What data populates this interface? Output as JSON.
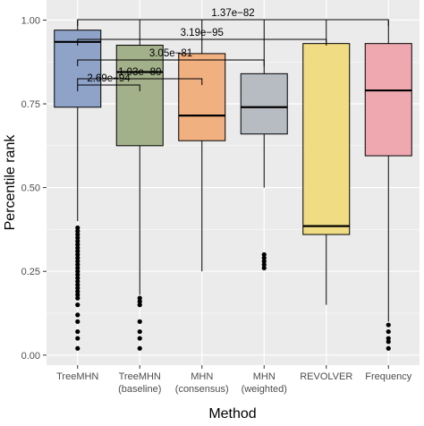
{
  "chart_data": {
    "type": "box",
    "title": "",
    "xlabel": "Method",
    "ylabel": "Percentile rank",
    "ylim": [
      -0.03,
      1.06
    ],
    "yticks": [
      "0.00",
      "0.25",
      "0.50",
      "0.75",
      "1.00"
    ],
    "yticks_values": [
      0,
      0.25,
      0.5,
      0.75,
      1.0
    ],
    "grid": true,
    "legend": "none",
    "categories": [
      {
        "line1": "TreeMHN",
        "line2": ""
      },
      {
        "line1": "TreeMHN",
        "line2": "(baseline)"
      },
      {
        "line1": "MHN",
        "line2": "(consensus)"
      },
      {
        "line1": "MHN",
        "line2": "(weighted)"
      },
      {
        "line1": "REVOLVER",
        "line2": ""
      },
      {
        "line1": "Frequency",
        "line2": ""
      }
    ],
    "boxes": [
      {
        "whisker_low": 0.4,
        "q1": 0.74,
        "median": 0.935,
        "q3": 0.97,
        "whisker_high": 1.0,
        "outliers": [
          0.38,
          0.37,
          0.36,
          0.35,
          0.34,
          0.33,
          0.32,
          0.31,
          0.3,
          0.29,
          0.28,
          0.27,
          0.26,
          0.25,
          0.24,
          0.23,
          0.22,
          0.21,
          0.2,
          0.19,
          0.18,
          0.17,
          0.15,
          0.12,
          0.1,
          0.07,
          0.05,
          0.02
        ],
        "color": "#8fa3c8"
      },
      {
        "whisker_low": 0.18,
        "q1": 0.625,
        "median": 0.845,
        "q3": 0.925,
        "whisker_high": 1.0,
        "outliers": [
          0.17,
          0.16,
          0.15,
          0.1,
          0.07,
          0.05,
          0.02
        ],
        "color": "#a3b18a"
      },
      {
        "whisker_low": 0.25,
        "q1": 0.64,
        "median": 0.715,
        "q3": 0.9,
        "whisker_high": 1.0,
        "outliers": [],
        "color": "#f0b080"
      },
      {
        "whisker_low": 0.5,
        "q1": 0.66,
        "median": 0.74,
        "q3": 0.84,
        "whisker_high": 1.0,
        "outliers": [
          0.3,
          0.29,
          0.28,
          0.27,
          0.26
        ],
        "color": "#b7bcc2"
      },
      {
        "whisker_low": 0.15,
        "q1": 0.36,
        "median": 0.385,
        "q3": 0.93,
        "whisker_high": 1.0,
        "outliers": [],
        "color": "#f0dc82"
      },
      {
        "whisker_low": 0.1,
        "q1": 0.595,
        "median": 0.79,
        "q3": 0.93,
        "whisker_high": 1.0,
        "outliers": [
          0.09,
          0.07,
          0.05,
          0.04,
          0.02
        ],
        "color": "#f0a8b0"
      }
    ],
    "comparisons": [
      {
        "from": 0,
        "to": 1,
        "label": "2.69e−94"
      },
      {
        "from": 0,
        "to": 2,
        "label": "1.03e−80"
      },
      {
        "from": 0,
        "to": 3,
        "label": "3.05e−81"
      },
      {
        "from": 0,
        "to": 4,
        "label": "3.19e−95"
      },
      {
        "from": 0,
        "to": 5,
        "label": "1.37e−82"
      }
    ]
  }
}
